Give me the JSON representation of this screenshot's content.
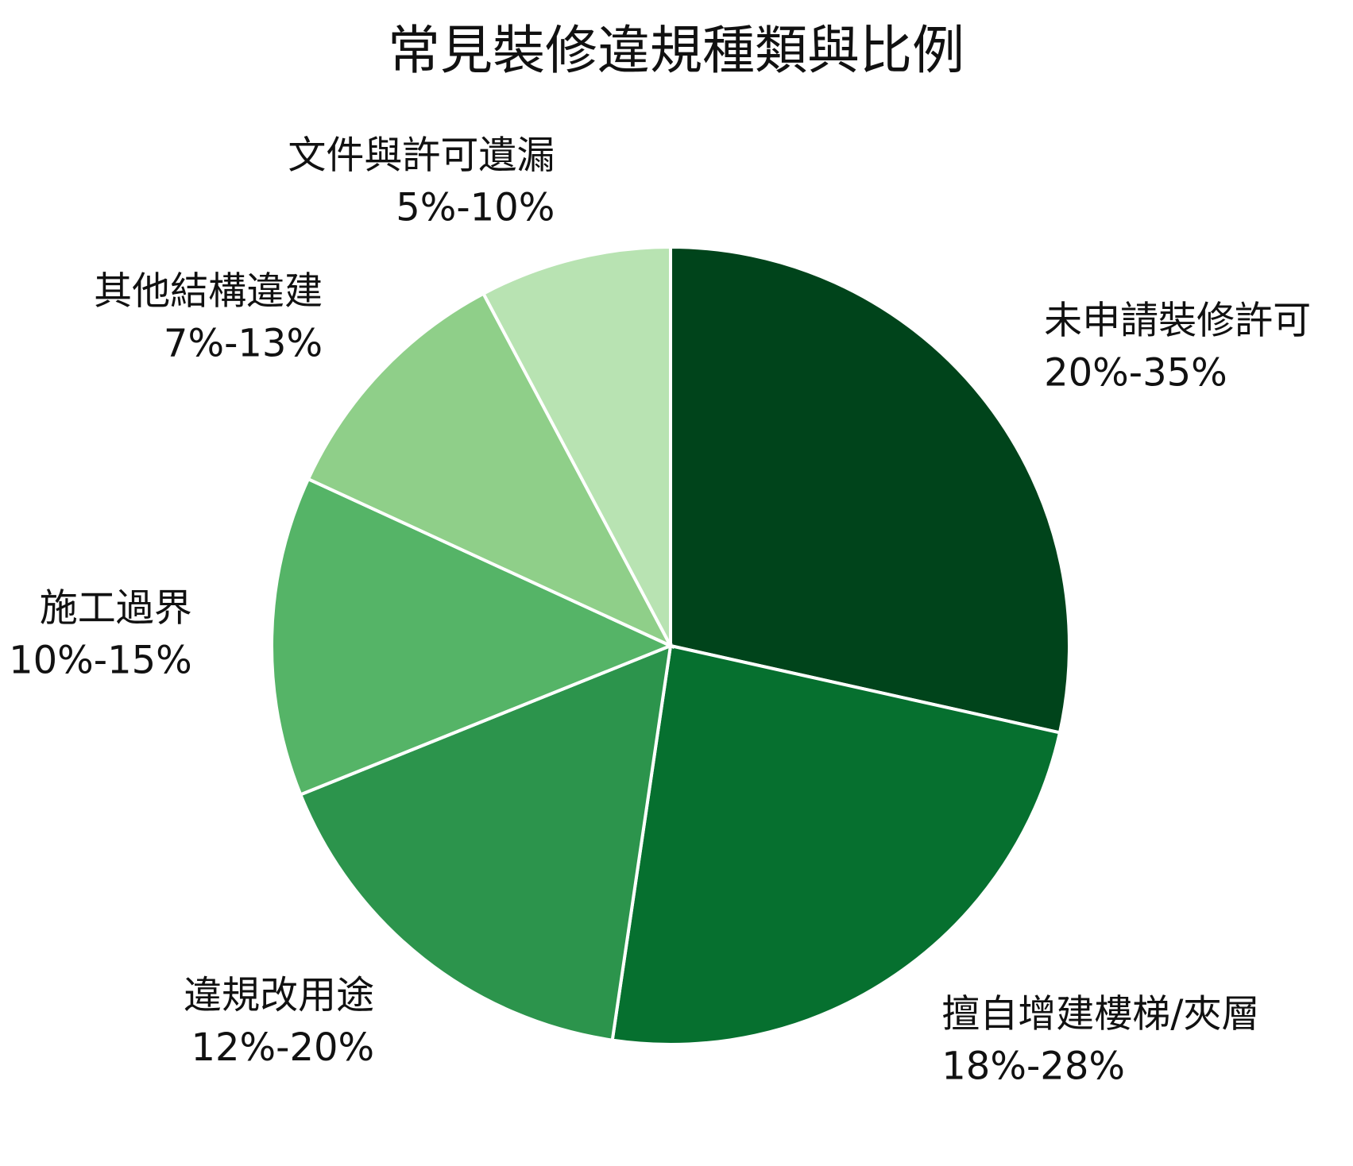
{
  "chart_data": {
    "type": "pie",
    "title": "常見裝修違規種類與比例",
    "categories": [
      "未申請裝修許可",
      "擅自增建樓梯/夾層",
      "違規改用途",
      "施工過界",
      "其他結構違建",
      "文件與許可遺漏"
    ],
    "values": [
      27.5,
      23,
      16,
      12.5,
      10,
      7.5
    ],
    "value_labels": [
      "20%-35%",
      "18%-28%",
      "12%-20%",
      "10%-15%",
      "7%-13%",
      "5%-10%"
    ],
    "colors": [
      "#00441b",
      "#06702f",
      "#2c944c",
      "#55b467",
      "#8fcf89",
      "#b8e3b2"
    ]
  }
}
